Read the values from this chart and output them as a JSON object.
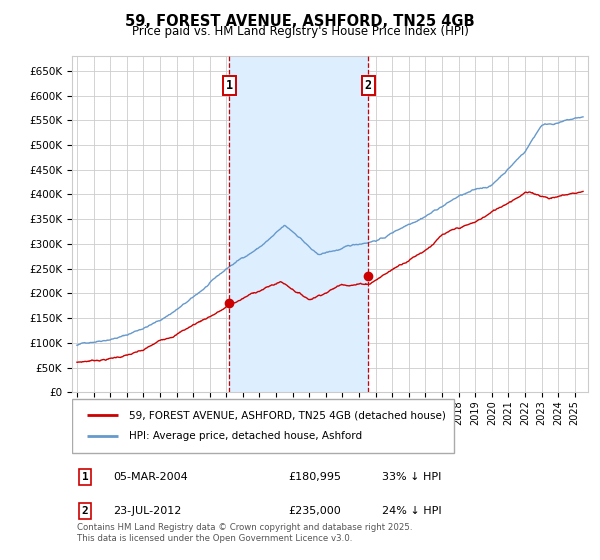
{
  "title": "59, FOREST AVENUE, ASHFORD, TN25 4GB",
  "subtitle": "Price paid vs. HM Land Registry's House Price Index (HPI)",
  "ylabel_ticks": [
    "£0",
    "£50K",
    "£100K",
    "£150K",
    "£200K",
    "£250K",
    "£300K",
    "£350K",
    "£400K",
    "£450K",
    "£500K",
    "£550K",
    "£600K",
    "£650K"
  ],
  "ytick_values": [
    0,
    50000,
    100000,
    150000,
    200000,
    250000,
    300000,
    350000,
    400000,
    450000,
    500000,
    550000,
    600000,
    650000
  ],
  "ylim": [
    0,
    680000
  ],
  "xlim_start": 1994.7,
  "xlim_end": 2025.8,
  "marker1_x": 2004.18,
  "marker1_y": 180995,
  "marker1_label": "1",
  "marker1_date": "05-MAR-2004",
  "marker1_price": "£180,995",
  "marker1_hpi": "33% ↓ HPI",
  "marker2_x": 2012.56,
  "marker2_y": 235000,
  "marker2_label": "2",
  "marker2_date": "23-JUL-2012",
  "marker2_price": "£235,000",
  "marker2_hpi": "24% ↓ HPI",
  "legend_line1": "59, FOREST AVENUE, ASHFORD, TN25 4GB (detached house)",
  "legend_line2": "HPI: Average price, detached house, Ashford",
  "footnote": "Contains HM Land Registry data © Crown copyright and database right 2025.\nThis data is licensed under the Open Government Licence v3.0.",
  "line_color_red": "#cc0000",
  "line_color_blue": "#6699cc",
  "shading_color": "#ddeeff",
  "grid_color": "#cccccc",
  "marker_box_color": "#cc0000",
  "background_color": "#ffffff"
}
